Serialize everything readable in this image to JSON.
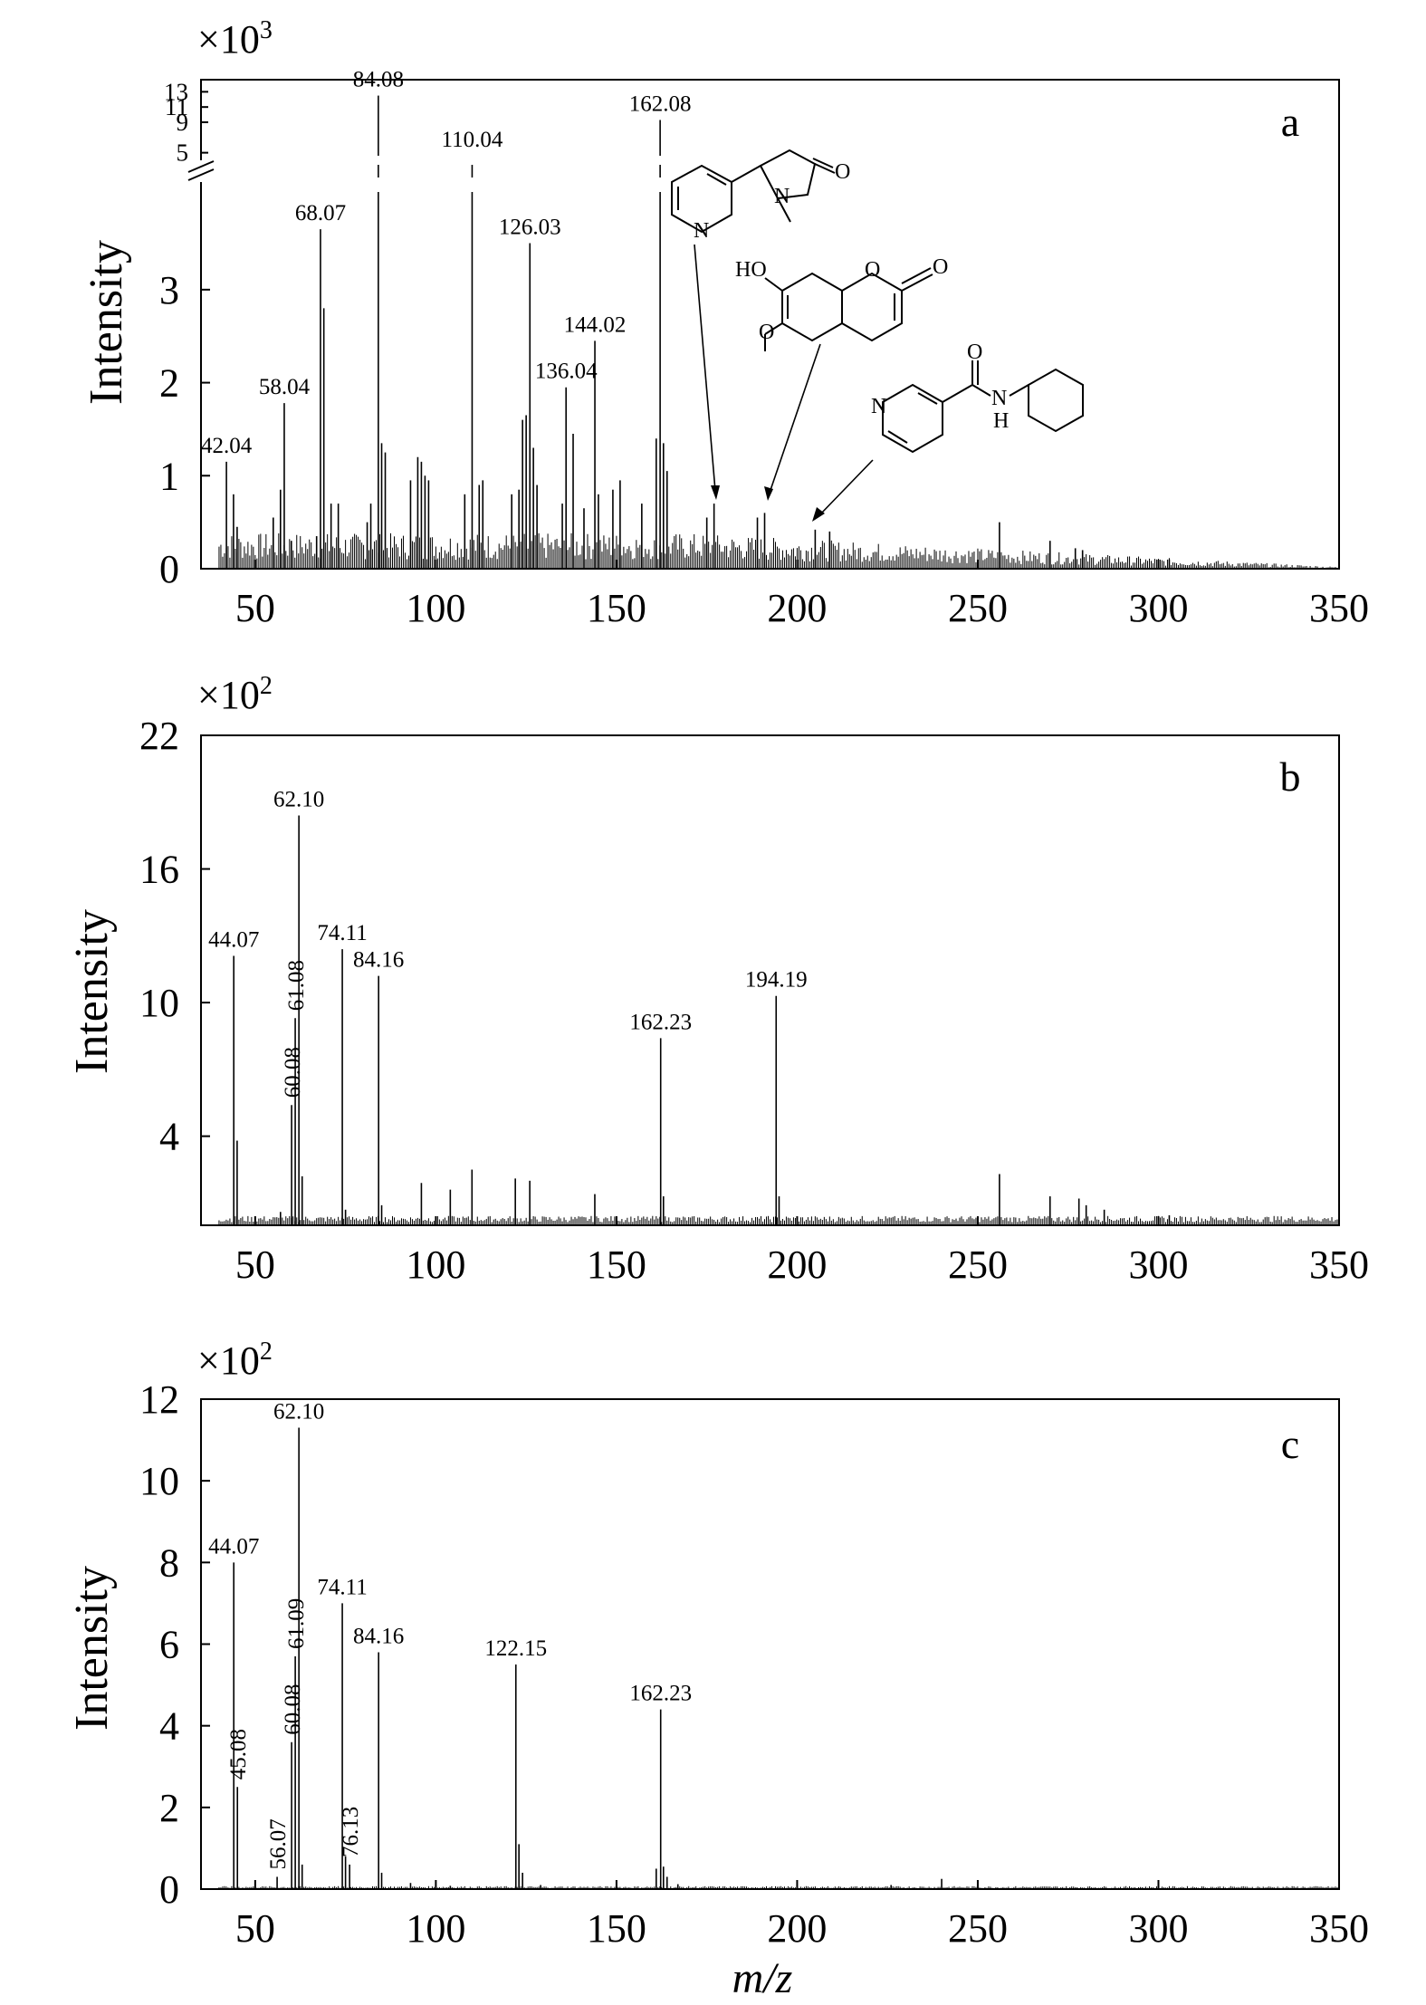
{
  "chart_data": [
    {
      "id": "a",
      "type": "bar",
      "panel_label": "a",
      "multiplier": "×10",
      "multiplier_exp": "3",
      "ylabel": "Intensity",
      "xlabel": "",
      "xlim": [
        35,
        350
      ],
      "x_ticks": [
        50,
        100,
        150,
        200,
        250,
        300,
        350
      ],
      "y_ticks": [
        0,
        1,
        2,
        3
      ],
      "y_break": {
        "lower_max": 4.05,
        "upper_min": 4.6,
        "upper_max": 13.4
      },
      "y_ticks_upper": [
        5,
        9,
        11,
        13
      ],
      "peaks": [
        {
          "x": 42.04,
          "y": 1.15,
          "label": "42.04"
        },
        {
          "x": 58.04,
          "y": 1.78,
          "label": "58.04"
        },
        {
          "x": 68.07,
          "y": 3.65,
          "label": "68.07"
        },
        {
          "x": 84.08,
          "y": 12.5,
          "label": "84.08"
        },
        {
          "x": 110.04,
          "y": 4.6,
          "label": "110.04"
        },
        {
          "x": 126.03,
          "y": 3.5,
          "label": "126.03"
        },
        {
          "x": 136.04,
          "y": 1.95,
          "label": "136.04"
        },
        {
          "x": 144.02,
          "y": 2.45,
          "label": "144.02"
        },
        {
          "x": 162.08,
          "y": 9.3,
          "label": "162.08"
        }
      ],
      "minor_peaks": [
        [
          44,
          0.8
        ],
        [
          45,
          0.45
        ],
        [
          55,
          0.55
        ],
        [
          57,
          0.85
        ],
        [
          60,
          0.3
        ],
        [
          67,
          0.35
        ],
        [
          69,
          2.8
        ],
        [
          71,
          0.7
        ],
        [
          73,
          0.7
        ],
        [
          81,
          0.5
        ],
        [
          82,
          0.7
        ],
        [
          85,
          1.35
        ],
        [
          86,
          1.25
        ],
        [
          93,
          0.95
        ],
        [
          95,
          1.2
        ],
        [
          96,
          1.15
        ],
        [
          97,
          1.0
        ],
        [
          98,
          0.95
        ],
        [
          108,
          0.8
        ],
        [
          112,
          0.9
        ],
        [
          113,
          0.95
        ],
        [
          121,
          0.8
        ],
        [
          123,
          0.85
        ],
        [
          124,
          1.6
        ],
        [
          125,
          1.65
        ],
        [
          127,
          1.3
        ],
        [
          128,
          0.9
        ],
        [
          135,
          0.7
        ],
        [
          138,
          1.45
        ],
        [
          141,
          0.65
        ],
        [
          145,
          0.8
        ],
        [
          149,
          0.85
        ],
        [
          151,
          0.95
        ],
        [
          157,
          0.7
        ],
        [
          161,
          1.4
        ],
        [
          163,
          1.35
        ],
        [
          164,
          1.05
        ],
        [
          175,
          0.55
        ],
        [
          177,
          0.7
        ],
        [
          189,
          0.55
        ],
        [
          191,
          0.6
        ],
        [
          205,
          0.42
        ],
        [
          209,
          0.4
        ],
        [
          256,
          0.5
        ],
        [
          270,
          0.3
        ],
        [
          277,
          0.22
        ],
        [
          279,
          0.2
        ],
        [
          303,
          0.1
        ]
      ],
      "noise_floor": 0.32
    },
    {
      "id": "b",
      "type": "bar",
      "panel_label": "b",
      "multiplier": "×10",
      "multiplier_exp": "2",
      "ylabel": "Intensity",
      "xlabel": "",
      "xlim": [
        35,
        350
      ],
      "ylim": [
        0,
        22
      ],
      "x_ticks": [
        50,
        100,
        150,
        200,
        250,
        300,
        350
      ],
      "y_ticks": [
        4,
        10,
        16,
        22
      ],
      "peaks": [
        {
          "x": 44.07,
          "y": 12.1,
          "label": "44.07"
        },
        {
          "x": 60.08,
          "y": 5.4,
          "label": "60.08",
          "rotated": true
        },
        {
          "x": 61.08,
          "y": 9.3,
          "label": "61.08",
          "rotated": true
        },
        {
          "x": 62.1,
          "y": 18.4,
          "label": "62.10"
        },
        {
          "x": 74.11,
          "y": 12.4,
          "label": "74.11"
        },
        {
          "x": 84.16,
          "y": 11.2,
          "label": "84.16"
        },
        {
          "x": 162.23,
          "y": 8.4,
          "label": "162.23"
        },
        {
          "x": 194.19,
          "y": 10.3,
          "label": "194.19"
        }
      ],
      "minor_peaks": [
        [
          45,
          3.8
        ],
        [
          57,
          0.6
        ],
        [
          63,
          2.2
        ],
        [
          75,
          0.7
        ],
        [
          85,
          0.9
        ],
        [
          96,
          1.9
        ],
        [
          104,
          1.6
        ],
        [
          110,
          2.5
        ],
        [
          122,
          2.1
        ],
        [
          126,
          2.0
        ],
        [
          144,
          1.4
        ],
        [
          163,
          1.3
        ],
        [
          195,
          1.3
        ],
        [
          256,
          2.3
        ],
        [
          270,
          1.3
        ],
        [
          278,
          1.2
        ],
        [
          280,
          0.9
        ],
        [
          285,
          0.7
        ],
        [
          303,
          0.45
        ]
      ],
      "noise_floor": 0.35
    },
    {
      "id": "c",
      "type": "bar",
      "panel_label": "c",
      "multiplier": "×10",
      "multiplier_exp": "2",
      "ylabel": "Intensity",
      "xlabel": "m/z",
      "xlim": [
        35,
        350
      ],
      "ylim": [
        0,
        12
      ],
      "x_ticks": [
        50,
        100,
        150,
        200,
        250,
        300,
        350
      ],
      "y_ticks": [
        0,
        2,
        4,
        6,
        8,
        10,
        12
      ],
      "peaks": [
        {
          "x": 44.07,
          "y": 8.0,
          "label": "44.07"
        },
        {
          "x": 45.08,
          "y": 2.5,
          "label": "45.08",
          "rotated": true
        },
        {
          "x": 56.07,
          "y": 0.3,
          "label": "56.07",
          "rotated": true
        },
        {
          "x": 60.08,
          "y": 3.6,
          "label": "60.08",
          "rotated": true
        },
        {
          "x": 61.09,
          "y": 5.7,
          "label": "61.09",
          "rotated": true
        },
        {
          "x": 62.1,
          "y": 11.3,
          "label": "62.10"
        },
        {
          "x": 74.11,
          "y": 7.0,
          "label": "74.11"
        },
        {
          "x": 76.13,
          "y": 0.6,
          "label": "76.13",
          "rotated": true
        },
        {
          "x": 84.16,
          "y": 5.8,
          "label": "84.16"
        },
        {
          "x": 122.15,
          "y": 5.5,
          "label": "122.15"
        },
        {
          "x": 162.23,
          "y": 4.4,
          "label": "162.23"
        }
      ],
      "minor_peaks": [
        [
          63,
          0.6
        ],
        [
          75,
          0.8
        ],
        [
          85,
          0.4
        ],
        [
          93,
          0.15
        ],
        [
          104,
          0.08
        ],
        [
          123,
          1.1
        ],
        [
          124,
          0.4
        ],
        [
          129,
          0.1
        ],
        [
          161,
          0.5
        ],
        [
          163,
          0.55
        ],
        [
          164,
          0.3
        ],
        [
          167,
          0.12
        ],
        [
          226,
          0.1
        ],
        [
          240,
          0.25
        ]
      ],
      "noise_floor": 0.06
    }
  ],
  "structures": {
    "s1": {
      "atoms": [
        "N",
        "N",
        "O"
      ]
    },
    "s2": {
      "atoms": [
        "HO",
        "O",
        "O",
        "O"
      ]
    },
    "s3": {
      "atoms": [
        "N",
        "O",
        "N",
        "H"
      ]
    }
  }
}
